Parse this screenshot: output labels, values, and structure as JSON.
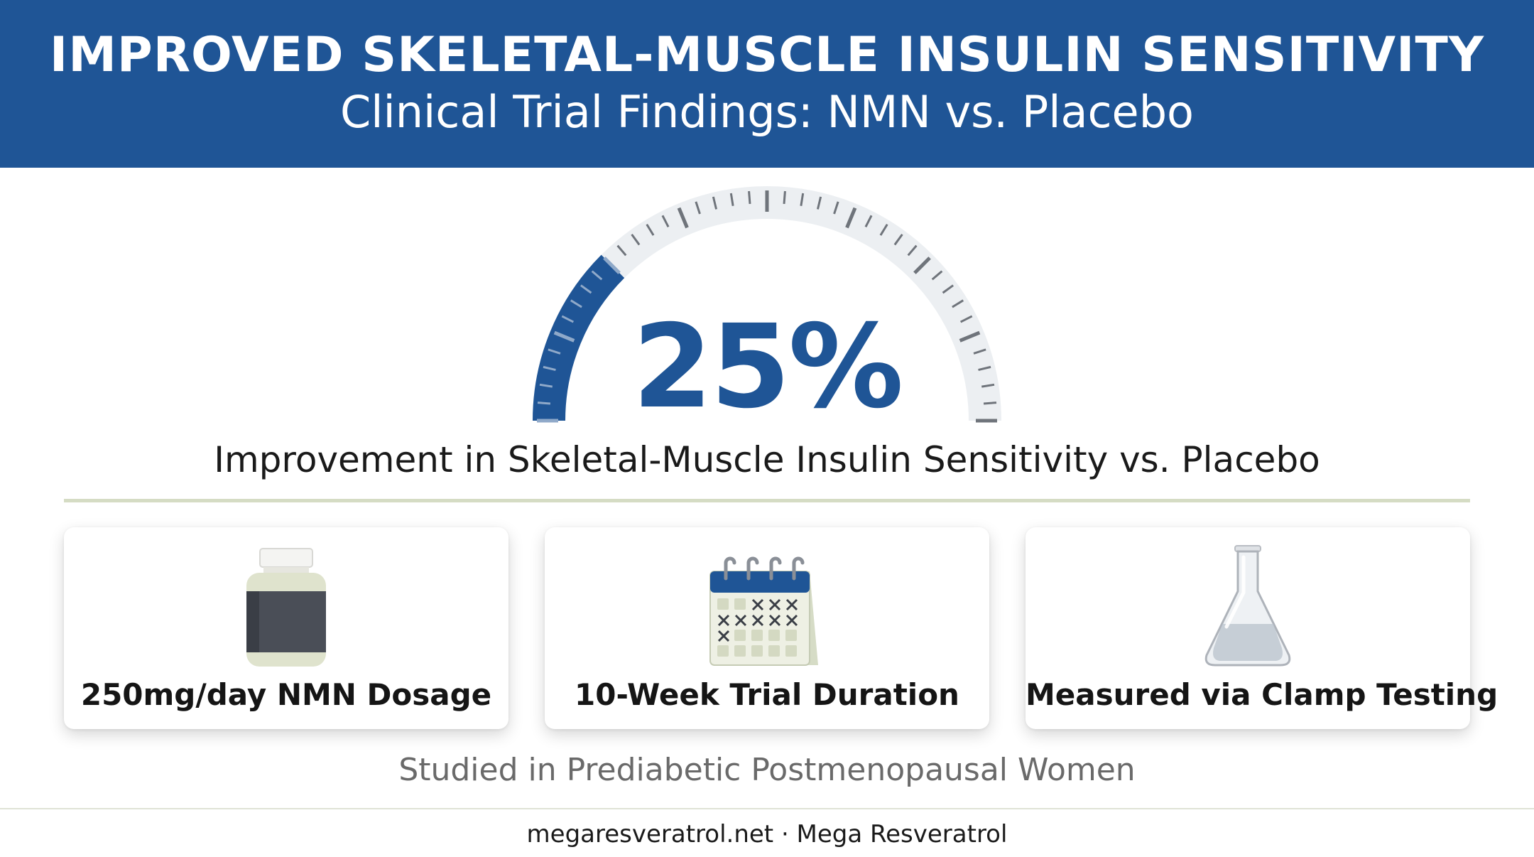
{
  "header": {
    "title": "IMPROVED SKELETAL-MUSCLE INSULIN SENSITIVITY",
    "subtitle": "Clinical Trial Findings: NMN vs. Placebo"
  },
  "gauge": {
    "value_label": "25%",
    "fraction": 0.25,
    "caption": "Improvement in Skeletal-Muscle Insulin Sensitivity vs. Placebo"
  },
  "cards": [
    {
      "icon": "supplement-bottle-icon",
      "label": "250mg/day NMN Dosage"
    },
    {
      "icon": "calendar-icon",
      "label": "10-Week Trial Duration"
    },
    {
      "icon": "flask-icon",
      "label": "Measured via Clamp Testing"
    }
  ],
  "population": "Studied in Prediabetic Postmenopausal Women",
  "footer": "megaresveratrol.net · Mega Resveratrol",
  "colors": {
    "header_bg": "#1f5596",
    "accent": "#1f5596",
    "gauge_track": "#eceff2"
  }
}
